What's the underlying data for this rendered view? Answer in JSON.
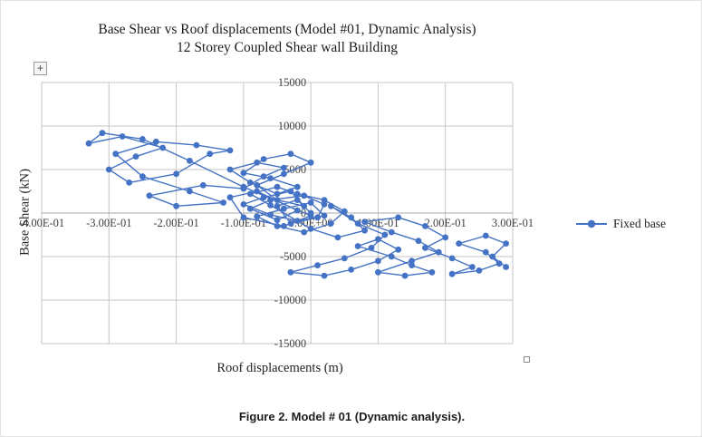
{
  "chart_data": {
    "type": "line",
    "title": "Base Shear vs Roof displacements (Model #01, Dynamic Analysis)",
    "subtitle": "12 Storey Coupled Shear wall Building",
    "xlabel": "Roof displacements (m)",
    "ylabel": "Base Shear (kN)",
    "xlim": [
      -0.4,
      0.3
    ],
    "ylim": [
      -15000,
      15000
    ],
    "x_ticks": [
      "-4.00E-01",
      "-3.00E-01",
      "-2.00E-01",
      "-1.00E-01",
      "0.00E+00",
      "1.00E-01",
      "2.00E-01",
      "3.00E-01"
    ],
    "y_ticks": [
      15000,
      10000,
      5000,
      0,
      -5000,
      -10000,
      -15000
    ],
    "grid": true,
    "legend_position": "right",
    "series": [
      {
        "name": "Fixed base",
        "marker": "circle",
        "color": "#4472C4",
        "points": [
          [
            0.0,
            0
          ],
          [
            -0.02,
            1500
          ],
          [
            -0.05,
            800
          ],
          [
            -0.03,
            -1200
          ],
          [
            0.01,
            -500
          ],
          [
            0.02,
            1000
          ],
          [
            -0.01,
            2000
          ],
          [
            -0.06,
            1500
          ],
          [
            -0.09,
            500
          ],
          [
            -0.05,
            -800
          ],
          [
            -0.02,
            300
          ],
          [
            -0.08,
            2500
          ],
          [
            -0.12,
            1800
          ],
          [
            -0.1,
            -500
          ],
          [
            -0.04,
            -1500
          ],
          [
            0.0,
            -300
          ],
          [
            -0.1,
            3000
          ],
          [
            -0.18,
            6000
          ],
          [
            -0.25,
            8500
          ],
          [
            -0.31,
            9200
          ],
          [
            -0.33,
            8000
          ],
          [
            -0.28,
            8800
          ],
          [
            -0.22,
            7500
          ],
          [
            -0.26,
            6500
          ],
          [
            -0.3,
            5000
          ],
          [
            -0.27,
            3500
          ],
          [
            -0.2,
            4500
          ],
          [
            -0.15,
            6800
          ],
          [
            -0.12,
            7200
          ],
          [
            -0.17,
            7800
          ],
          [
            -0.23,
            8200
          ],
          [
            -0.29,
            6800
          ],
          [
            -0.25,
            4200
          ],
          [
            -0.18,
            2500
          ],
          [
            -0.13,
            1200
          ],
          [
            -0.2,
            800
          ],
          [
            -0.24,
            2000
          ],
          [
            -0.16,
            3200
          ],
          [
            -0.1,
            2800
          ],
          [
            -0.07,
            4200
          ],
          [
            -0.04,
            5200
          ],
          [
            -0.08,
            5800
          ],
          [
            -0.12,
            5000
          ],
          [
            -0.09,
            3500
          ],
          [
            -0.05,
            2200
          ],
          [
            -0.02,
            3000
          ],
          [
            -0.06,
            4000
          ],
          [
            -0.1,
            4600
          ],
          [
            -0.07,
            6200
          ],
          [
            -0.03,
            6800
          ],
          [
            0.0,
            5800
          ],
          [
            -0.04,
            4500
          ],
          [
            -0.08,
            3200
          ],
          [
            -0.05,
            1500
          ],
          [
            -0.01,
            800
          ],
          [
            -0.03,
            2500
          ],
          [
            -0.07,
            1800
          ],
          [
            -0.1,
            1000
          ],
          [
            -0.06,
            -200
          ],
          [
            -0.02,
            -900
          ],
          [
            0.02,
            -300
          ],
          [
            0.0,
            1200
          ],
          [
            -0.04,
            500
          ],
          [
            -0.08,
            -400
          ],
          [
            -0.05,
            -1500
          ],
          [
            -0.01,
            -2200
          ],
          [
            0.03,
            -1200
          ],
          [
            0.05,
            200
          ],
          [
            0.02,
            1500
          ],
          [
            -0.02,
            2200
          ],
          [
            -0.05,
            3000
          ],
          [
            -0.09,
            2200
          ],
          [
            -0.06,
            900
          ],
          [
            0.0,
            -1800
          ],
          [
            0.04,
            -2800
          ],
          [
            0.08,
            -2000
          ],
          [
            0.06,
            -500
          ],
          [
            0.03,
            800
          ],
          [
            0.07,
            -1200
          ],
          [
            0.11,
            -2500
          ],
          [
            0.09,
            -4000
          ],
          [
            0.05,
            -5200
          ],
          [
            0.01,
            -6000
          ],
          [
            -0.03,
            -6800
          ],
          [
            0.02,
            -7200
          ],
          [
            0.06,
            -6500
          ],
          [
            0.1,
            -5500
          ],
          [
            0.13,
            -4200
          ],
          [
            0.1,
            -3000
          ],
          [
            0.07,
            -3800
          ],
          [
            0.12,
            -5000
          ],
          [
            0.15,
            -6000
          ],
          [
            0.18,
            -6800
          ],
          [
            0.14,
            -7200
          ],
          [
            0.1,
            -6800
          ],
          [
            0.15,
            -5500
          ],
          [
            0.19,
            -4500
          ],
          [
            0.16,
            -3200
          ],
          [
            0.12,
            -2200
          ],
          [
            0.08,
            -1000
          ],
          [
            0.13,
            -500
          ],
          [
            0.17,
            -1500
          ],
          [
            0.2,
            -2800
          ],
          [
            0.17,
            -4000
          ],
          [
            0.21,
            -5200
          ],
          [
            0.24,
            -6200
          ],
          [
            0.21,
            -7000
          ],
          [
            0.25,
            -6600
          ],
          [
            0.28,
            -5800
          ],
          [
            0.26,
            -4500
          ],
          [
            0.22,
            -3500
          ],
          [
            0.26,
            -2600
          ],
          [
            0.29,
            -3500
          ],
          [
            0.27,
            -5000
          ],
          [
            0.29,
            -6200
          ]
        ]
      }
    ]
  },
  "handles": {
    "move_glyph": "+"
  },
  "caption": {
    "label": "Figure 2.",
    "text": " Model # 01 (Dynamic analysis)."
  },
  "colors": {
    "series": "#4472C4",
    "grid": "#c6c6c6",
    "zero_axis": "#a8a8a8",
    "axis_text": "#404040"
  }
}
